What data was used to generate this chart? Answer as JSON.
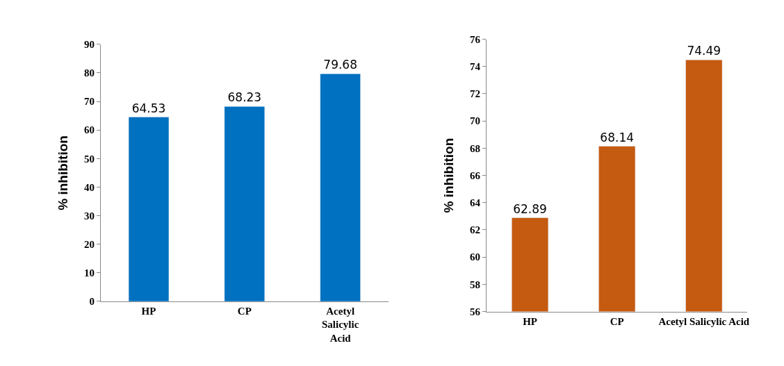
{
  "chart_data": [
    {
      "type": "bar",
      "ylabel": "% inhibition",
      "categories": [
        "HP",
        "CP",
        "Acetyl Salicylic Acid"
      ],
      "values": [
        64.53,
        68.23,
        79.68
      ],
      "color": "#0070c0",
      "ylim": [
        0,
        90
      ],
      "yticks": [
        0,
        10,
        20,
        30,
        40,
        50,
        60,
        70,
        80,
        90
      ],
      "data_labels": true
    },
    {
      "type": "bar",
      "ylabel": "% inhibition",
      "categories": [
        "HP",
        "CP",
        "Acetyl Salicylic Acid"
      ],
      "values": [
        62.89,
        68.14,
        74.49
      ],
      "color": "#c55a11",
      "ylim": [
        56,
        76
      ],
      "yticks": [
        56,
        58,
        60,
        62,
        64,
        66,
        68,
        70,
        72,
        74,
        76
      ],
      "data_labels": true
    }
  ]
}
